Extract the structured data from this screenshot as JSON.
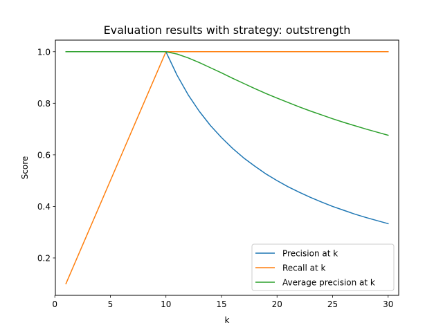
{
  "chart_data": {
    "type": "line",
    "title": "Evaluation results with strategy: outstrength",
    "xlabel": "k",
    "ylabel": "Score",
    "xlim": [
      0.05,
      30.95
    ],
    "ylim": [
      0.055,
      1.045
    ],
    "xticks": [
      0,
      5,
      10,
      15,
      20,
      25,
      30
    ],
    "yticks": [
      0.2,
      0.4,
      0.6,
      0.8,
      1.0
    ],
    "xtick_labels": [
      "0",
      "5",
      "10",
      "15",
      "20",
      "25",
      "30"
    ],
    "ytick_labels": [
      "0.2",
      "0.4",
      "0.6",
      "0.8",
      "1.0"
    ],
    "grid": false,
    "legend_position": "lower-right",
    "x": [
      1,
      2,
      3,
      4,
      5,
      6,
      7,
      8,
      9,
      10,
      11,
      12,
      13,
      14,
      15,
      16,
      17,
      18,
      19,
      20,
      21,
      22,
      23,
      24,
      25,
      26,
      27,
      28,
      29,
      30
    ],
    "series": [
      {
        "name": "Precision at k",
        "color": "#1f77b4",
        "values": [
          1,
          1,
          1,
          1,
          1,
          1,
          1,
          1,
          1,
          1,
          0.909,
          0.833,
          0.769,
          0.714,
          0.667,
          0.625,
          0.588,
          0.556,
          0.526,
          0.5,
          0.476,
          0.455,
          0.435,
          0.417,
          0.4,
          0.385,
          0.37,
          0.357,
          0.345,
          0.333
        ]
      },
      {
        "name": "Recall at k",
        "color": "#ff7f0e",
        "values": [
          0.1,
          0.2,
          0.3,
          0.4,
          0.5,
          0.6,
          0.7,
          0.8,
          0.9,
          1,
          1,
          1,
          1,
          1,
          1,
          1,
          1,
          1,
          1,
          1,
          1,
          1,
          1,
          1,
          1,
          1,
          1,
          1,
          1,
          1
        ]
      },
      {
        "name": "Average precision at k",
        "color": "#2ca02c",
        "values": [
          1,
          1,
          1,
          1,
          1,
          1,
          1,
          1,
          1,
          1,
          0.991,
          0.976,
          0.958,
          0.938,
          0.918,
          0.897,
          0.877,
          0.857,
          0.838,
          0.82,
          0.803,
          0.786,
          0.77,
          0.755,
          0.74,
          0.726,
          0.713,
          0.7,
          0.688,
          0.676
        ]
      }
    ]
  }
}
